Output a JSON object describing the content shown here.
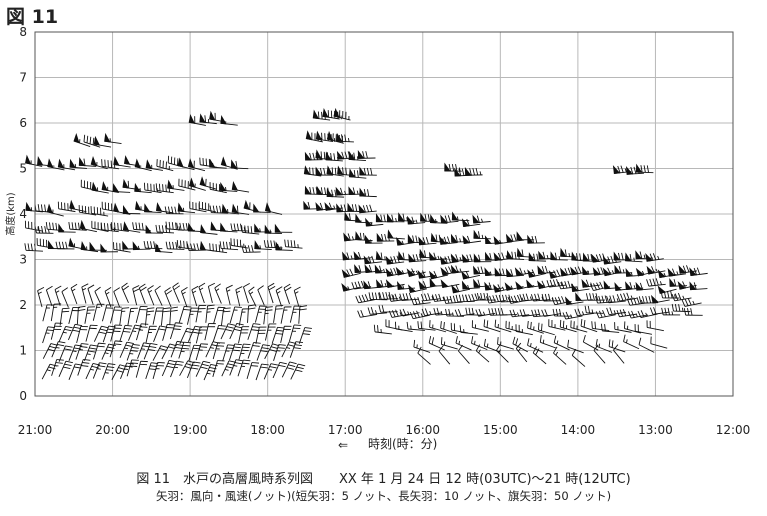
{
  "figure_label": "図 11",
  "caption": "図 11　水戸の高層風時系列図　　XX 年 1 月 24 日 12 時(03UTC)〜21 時(12UTC)",
  "subcaption": "矢羽：風向・風速(ノット)(短矢羽：5 ノット、長矢羽：10 ノット、旗矢羽：50 ノット)",
  "x_axis_arrow": "⇐",
  "colors": {
    "grid": "#b8b8b8",
    "frame": "#555555",
    "barb": "#111111"
  },
  "chart_data": {
    "type": "wind-barb-time-height",
    "xlabel": "時刻(時：分)",
    "ylabel": "高度(km)",
    "x_ticks": [
      "21:00",
      "20:00",
      "19:00",
      "18:00",
      "17:00",
      "16:00",
      "15:00",
      "14:00",
      "13:00",
      "12:00"
    ],
    "y_ticks": [
      "0",
      "1",
      "2",
      "3",
      "4",
      "5",
      "6",
      "7",
      "8"
    ],
    "xlim_hours": [
      21,
      12
    ],
    "ylim_km": [
      0,
      8
    ],
    "x_direction": "time decreases to the right",
    "grid": true,
    "layers_note": "values estimated from barb shapes",
    "layers": [
      {
        "h": 0.7,
        "dir": 315,
        "spd": [
          8,
          18
        ],
        "t0": 13.2,
        "t1": 15.9,
        "dt": 0.25
      },
      {
        "h": 1.0,
        "dir": 292,
        "spd": [
          10,
          20
        ],
        "t0": 12.8,
        "t1": 15.9,
        "dt": 0.18
      },
      {
        "h": 1.4,
        "dir": 282,
        "spd": [
          15,
          25
        ],
        "t0": 12.8,
        "t1": 16.4,
        "dt": 0.14
      },
      {
        "h": 1.8,
        "dir": 265,
        "spd": [
          20,
          35
        ],
        "t0": 12.3,
        "t1": 16.6,
        "dt": 0.14
      },
      {
        "h": 2.1,
        "dir": 265,
        "spd": [
          35,
          50
        ],
        "t0": 12.3,
        "t1": 16.6,
        "dt": 0.14
      },
      {
        "h": 2.4,
        "dir": 262,
        "spd": [
          45,
          65
        ],
        "t0": 12.3,
        "t1": 16.8,
        "dt": 0.14
      },
      {
        "h": 2.7,
        "dir": 262,
        "spd": [
          55,
          75
        ],
        "t0": 12.3,
        "t1": 16.8,
        "dt": 0.14
      },
      {
        "h": 3.0,
        "dir": 268,
        "spd": [
          60,
          80
        ],
        "t0": 12.8,
        "t1": 16.8,
        "dt": 0.14
      },
      {
        "h": 3.4,
        "dir": 268,
        "spd": [
          50,
          75
        ],
        "t0": 14.3,
        "t1": 16.8,
        "dt": 0.14
      },
      {
        "h": 3.8,
        "dir": 268,
        "spd": [
          50,
          70
        ],
        "t0": 15.0,
        "t1": 16.8,
        "dt": 0.14
      },
      {
        "h": 4.1,
        "dir": 268,
        "spd": [
          55,
          80
        ],
        "t0": 16.5,
        "t1": 17.3,
        "dt": 0.14
      },
      {
        "h": 4.4,
        "dir": 272,
        "spd": [
          60,
          85
        ],
        "t0": 16.5,
        "t1": 17.3,
        "dt": 0.14
      },
      {
        "h": 4.8,
        "dir": 272,
        "spd": [
          60,
          85
        ],
        "t0": 16.5,
        "t1": 17.3,
        "dt": 0.14
      },
      {
        "h": 5.2,
        "dir": 272,
        "spd": [
          65,
          90
        ],
        "t0": 16.5,
        "t1": 17.3,
        "dt": 0.14
      },
      {
        "h": 5.6,
        "dir": 278,
        "spd": [
          70,
          95
        ],
        "t0": 16.8,
        "t1": 17.3,
        "dt": 0.14
      },
      {
        "h": 6.1,
        "dir": 280,
        "spd": [
          75,
          100
        ],
        "t0": 16.8,
        "t1": 17.2,
        "dt": 0.14
      },
      {
        "h": 4.9,
        "dir": 270,
        "spd": [
          80,
          90
        ],
        "t0": 15.1,
        "t1": 15.5,
        "dt": 0.14
      },
      {
        "h": 4.9,
        "dir": 270,
        "spd": [
          75,
          85
        ],
        "t0": 12.9,
        "t1": 13.3,
        "dt": 0.14
      },
      {
        "h": 3.2,
        "dir": 275,
        "spd": [
          40,
          55
        ],
        "t0": 17.5,
        "t1": 20.9,
        "dt": 0.14
      },
      {
        "h": 3.6,
        "dir": 275,
        "spd": [
          40,
          55
        ],
        "t0": 17.6,
        "t1": 20.9,
        "dt": 0.14
      },
      {
        "h": 4.0,
        "dir": 278,
        "spd": [
          40,
          60
        ],
        "t0": 17.8,
        "t1": 20.9,
        "dt": 0.14
      },
      {
        "h": 4.5,
        "dir": 280,
        "spd": [
          45,
          60
        ],
        "t0": 18.2,
        "t1": 20.2,
        "dt": 0.14
      },
      {
        "h": 5.0,
        "dir": 280,
        "spd": [
          45,
          60
        ],
        "t0": 18.2,
        "t1": 20.9,
        "dt": 0.14
      },
      {
        "h": 5.5,
        "dir": 282,
        "spd": [
          45,
          60
        ],
        "t0": 19.8,
        "t1": 20.3,
        "dt": 0.14
      },
      {
        "h": 6.0,
        "dir": 282,
        "spd": [
          50,
          65
        ],
        "t0": 18.3,
        "t1": 18.8,
        "dt": 0.14
      },
      {
        "h": 0.4,
        "dir": 22,
        "spd": [
          20,
          35
        ],
        "t0": 17.7,
        "t1": 20.9,
        "dt": 0.11
      },
      {
        "h": 0.8,
        "dir": 22,
        "spd": [
          20,
          35
        ],
        "t0": 17.7,
        "t1": 20.9,
        "dt": 0.11
      },
      {
        "h": 1.2,
        "dir": 18,
        "spd": [
          20,
          30
        ],
        "t0": 17.6,
        "t1": 20.9,
        "dt": 0.11
      },
      {
        "h": 1.6,
        "dir": 10,
        "spd": [
          15,
          25
        ],
        "t0": 17.6,
        "t1": 20.9,
        "dt": 0.11
      },
      {
        "h": 2.0,
        "dir": 340,
        "spd": [
          10,
          20
        ],
        "t0": 17.6,
        "t1": 20.9,
        "dt": 0.11
      }
    ]
  }
}
